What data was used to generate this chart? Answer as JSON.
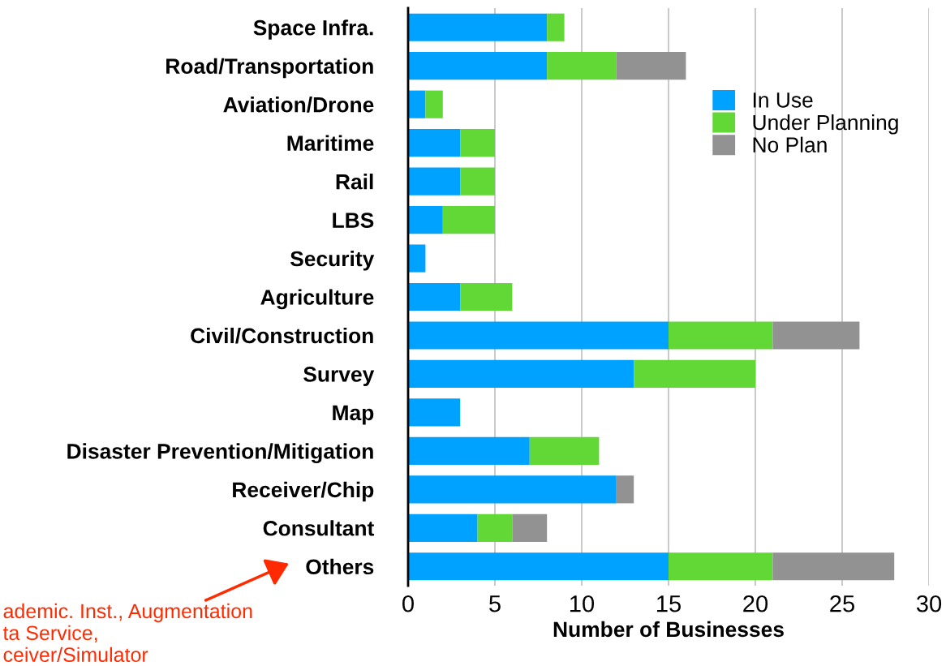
{
  "chart_data": {
    "type": "bar",
    "orientation": "horizontal",
    "stacked": true,
    "categories": [
      "Space Infra.",
      "Road/Transportation",
      "Aviation/Drone",
      "Maritime",
      "Rail",
      "LBS",
      "Security",
      "Agriculture",
      "Civil/Construction",
      "Survey",
      "Map",
      "Disaster Prevention/Mitigation",
      "Receiver/Chip",
      "Consultant",
      "Others"
    ],
    "series": [
      {
        "name": "In Use",
        "color": "#00a2ff",
        "values": [
          8,
          8,
          1,
          3,
          3,
          2,
          1,
          3,
          15,
          13,
          3,
          7,
          12,
          4,
          15
        ]
      },
      {
        "name": "Under Planning",
        "color": "#61d836",
        "values": [
          1,
          4,
          1,
          2,
          2,
          3,
          0,
          3,
          6,
          7,
          0,
          4,
          0,
          2,
          6
        ]
      },
      {
        "name": "No Plan",
        "color": "#929292",
        "values": [
          0,
          4,
          0,
          0,
          0,
          0,
          0,
          0,
          5,
          0,
          0,
          0,
          1,
          2,
          7
        ]
      }
    ],
    "xlabel": "Number of Businesses",
    "xlim": [
      0,
      30
    ],
    "xticks": [
      0,
      5,
      10,
      15,
      20,
      25,
      30
    ],
    "grid": "x",
    "legend": "right",
    "annotations": [
      "ademic. Inst., Augmentation\nta Service,\nceiver/Simulator"
    ]
  }
}
